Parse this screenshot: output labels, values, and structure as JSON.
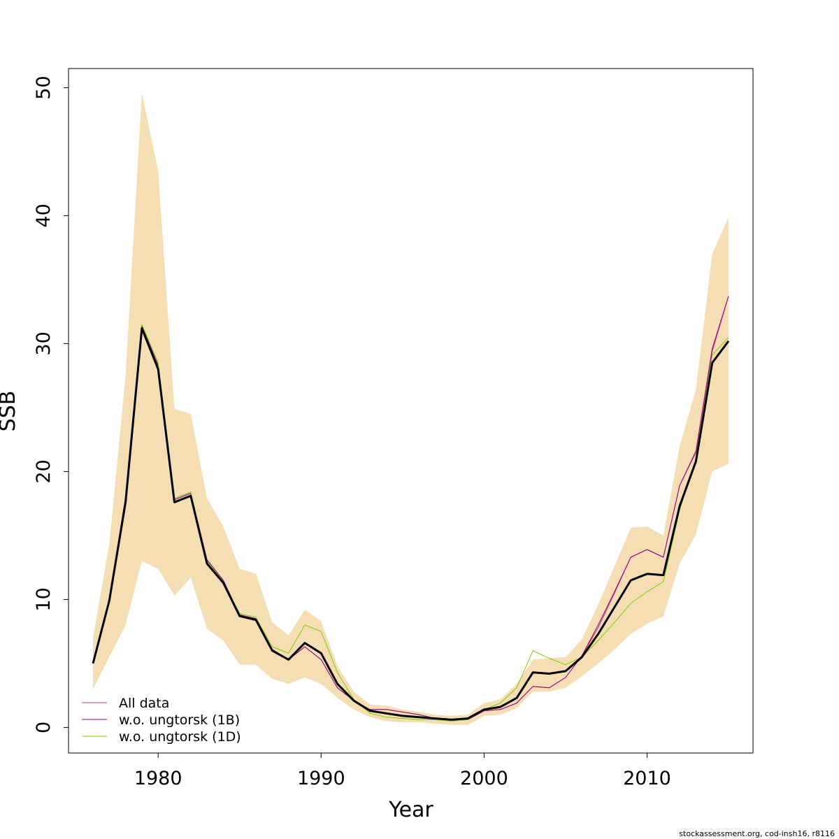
{
  "chart_data": {
    "type": "line",
    "xlabel": "Year",
    "ylabel": "SSB",
    "xlim": [
      1974.5,
      2016.5
    ],
    "ylim": [
      -2,
      51.5
    ],
    "x_ticks": [
      1980,
      1990,
      2000,
      2010
    ],
    "y_ticks": [
      0,
      10,
      20,
      30,
      40,
      50
    ],
    "grid": false,
    "legend_position": "bottom-left",
    "credit": "stockassessment.org, cod-insh16, r8116",
    "x": [
      1976,
      1977,
      1978,
      1979,
      1980,
      1981,
      1982,
      1983,
      1984,
      1985,
      1986,
      1987,
      1988,
      1989,
      1990,
      1991,
      1992,
      1993,
      1994,
      1995,
      1996,
      1997,
      1998,
      1999,
      2000,
      2001,
      2002,
      2003,
      2004,
      2005,
      2006,
      2007,
      2008,
      2009,
      2010,
      2011,
      2012,
      2013,
      2014,
      2015
    ],
    "band": {
      "color": "#F5DEB3",
      "lower": [
        3.0,
        5.5,
        8.0,
        13.0,
        12.4,
        10.3,
        11.7,
        7.7,
        6.8,
        4.9,
        4.9,
        3.8,
        3.4,
        3.9,
        3.4,
        2.3,
        1.4,
        0.8,
        0.5,
        0.4,
        0.4,
        0.3,
        0.2,
        0.2,
        0.9,
        1.0,
        1.5,
        2.8,
        2.8,
        3.1,
        4.0,
        5.0,
        6.1,
        7.3,
        8.1,
        8.7,
        12.8,
        15.1,
        20.0,
        20.6
      ],
      "upper": [
        7.0,
        14.3,
        27.5,
        49.6,
        43.5,
        24.9,
        24.5,
        17.9,
        15.7,
        12.4,
        12.0,
        8.2,
        7.2,
        9.2,
        8.3,
        4.8,
        2.8,
        1.8,
        1.7,
        1.4,
        1.2,
        1.0,
        0.9,
        1.0,
        1.9,
        2.2,
        3.4,
        5.3,
        5.4,
        5.5,
        6.9,
        9.6,
        12.6,
        15.6,
        15.7,
        15.0,
        22.0,
        26.4,
        37.0,
        39.9
      ]
    },
    "series": [
      {
        "name": "All data",
        "color": "#CD3278",
        "width": 1,
        "values": [
          5.0,
          10.0,
          18.0,
          31.4,
          28.3,
          17.8,
          18.3,
          13.1,
          11.5,
          8.8,
          8.5,
          6.1,
          5.3,
          6.3,
          5.3,
          3.1,
          2.1,
          1.4,
          1.4,
          1.2,
          1.0,
          0.7,
          0.6,
          0.6,
          1.3,
          1.4,
          1.9,
          3.2,
          3.1,
          3.9,
          5.6,
          7.8,
          10.5,
          13.3,
          13.9,
          13.3,
          18.9,
          21.5,
          29.4,
          33.7
        ]
      },
      {
        "name": "w.o. ungtorsk (1B)",
        "color": "#8B008B",
        "width": 1,
        "values": [
          5.0,
          10.0,
          18.0,
          31.4,
          28.3,
          17.8,
          18.3,
          13.1,
          11.5,
          8.8,
          8.5,
          6.1,
          5.3,
          6.3,
          5.3,
          3.1,
          2.1,
          1.4,
          1.4,
          1.2,
          1.0,
          0.7,
          0.6,
          0.6,
          1.3,
          1.4,
          1.9,
          3.2,
          3.1,
          3.9,
          5.6,
          8.0,
          10.6,
          13.3,
          13.9,
          13.3,
          18.9,
          21.6,
          29.6,
          33.7
        ]
      },
      {
        "name": "w.o. ungtorsk (1D)",
        "color": "#7CCD00",
        "width": 1,
        "values": [
          5.0,
          9.8,
          17.7,
          31.5,
          28.5,
          17.9,
          18.4,
          13.0,
          11.4,
          8.9,
          8.6,
          6.3,
          5.8,
          8.0,
          7.5,
          4.3,
          2.2,
          1.1,
          0.8,
          0.7,
          0.6,
          0.6,
          0.5,
          0.6,
          1.4,
          1.9,
          3.1,
          6.0,
          5.4,
          4.9,
          5.5,
          6.8,
          8.2,
          9.7,
          10.6,
          11.4,
          17.0,
          21.0,
          29.1,
          30.5
        ]
      },
      {
        "name": "",
        "color": "#000000",
        "width": 3,
        "values": [
          5.0,
          9.9,
          17.6,
          31.2,
          28.0,
          17.6,
          18.1,
          12.8,
          11.3,
          8.7,
          8.4,
          6.0,
          5.3,
          6.6,
          5.8,
          3.4,
          2.1,
          1.3,
          1.1,
          0.9,
          0.8,
          0.7,
          0.6,
          0.7,
          1.4,
          1.6,
          2.3,
          4.3,
          4.2,
          4.4,
          5.5,
          7.3,
          9.4,
          11.5,
          12.0,
          11.9,
          17.3,
          20.8,
          28.5,
          30.2
        ]
      }
    ]
  }
}
